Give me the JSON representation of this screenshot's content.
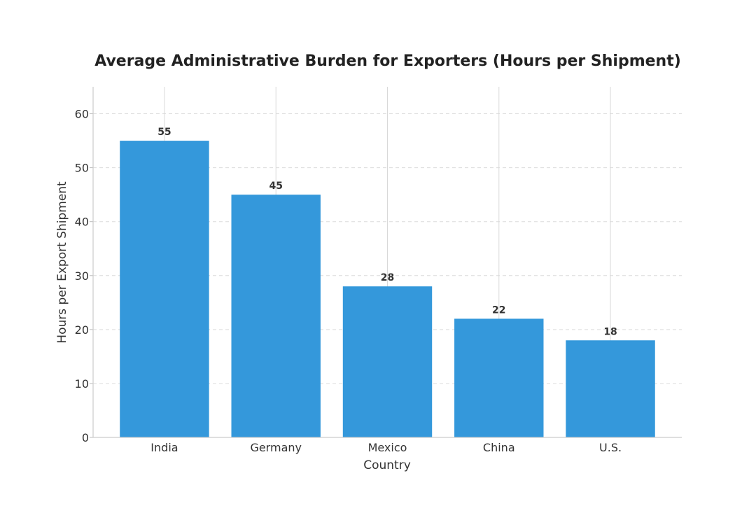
{
  "chart_data": {
    "type": "bar",
    "title": "Average Administrative Burden for Exporters (Hours per Shipment)",
    "xlabel": "Country",
    "ylabel": "Hours per Export Shipment",
    "categories": [
      "India",
      "Germany",
      "Mexico",
      "China",
      "U.S."
    ],
    "values": [
      55,
      45,
      28,
      22,
      18
    ],
    "data_labels": [
      "55",
      "45",
      "28",
      "22",
      "18"
    ],
    "ylim": [
      0,
      65
    ],
    "yticks": [
      0,
      10,
      20,
      30,
      40,
      50,
      60
    ],
    "grid": true,
    "bar_color": "#3498db"
  }
}
